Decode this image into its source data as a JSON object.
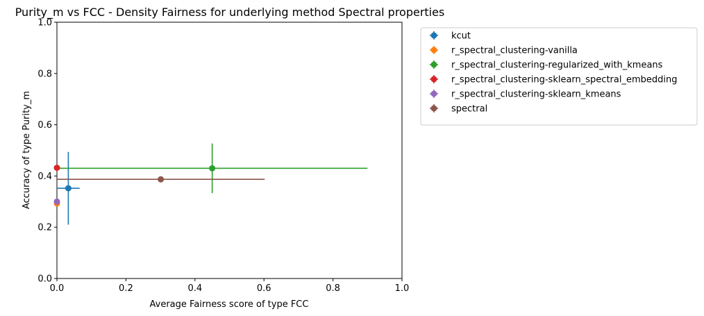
{
  "chart_data": {
    "type": "scatter",
    "title": "Purity_m vs FCC - Density Fairness for underlying method Spectral properties",
    "xlabel": "Average Fairness score of type FCC",
    "ylabel": "Accuracy of type Purity_m",
    "xlim": [
      0,
      1
    ],
    "ylim": [
      0,
      1
    ],
    "xticks": [
      "0.0",
      "0.2",
      "0.4",
      "0.6",
      "0.8",
      "1.0"
    ],
    "yticks": [
      "0.0",
      "0.2",
      "0.4",
      "0.6",
      "0.8",
      "1.0"
    ],
    "grid": false,
    "legend_position": "outside-top-right",
    "series": [
      {
        "name": "kcut",
        "color": "#1f77b4",
        "x": 0.033,
        "y": 0.352,
        "xerr": 0.033,
        "yerr": 0.142
      },
      {
        "name": "r_spectral_clustering-vanilla",
        "color": "#ff7f0e",
        "x": 0.0,
        "y": 0.293,
        "xerr": 0.0,
        "yerr": 0.0
      },
      {
        "name": "r_spectral_clustering-regularized_with_kmeans",
        "color": "#2ca02c",
        "x": 0.45,
        "y": 0.43,
        "xerr": 0.45,
        "yerr": 0.097
      },
      {
        "name": "r_spectral_clustering-sklearn_spectral_embedding",
        "color": "#d62728",
        "x": 0.0,
        "y": 0.432,
        "xerr": 0.0,
        "yerr": 0.0
      },
      {
        "name": "r_spectral_clustering-sklearn_kmeans",
        "color": "#9467bd",
        "x": 0.0,
        "y": 0.3,
        "xerr": 0.0,
        "yerr": 0.0
      },
      {
        "name": "spectral",
        "color": "#8c564b",
        "x": 0.301,
        "y": 0.387,
        "xerr": 0.301,
        "yerr": 0.0
      }
    ]
  }
}
